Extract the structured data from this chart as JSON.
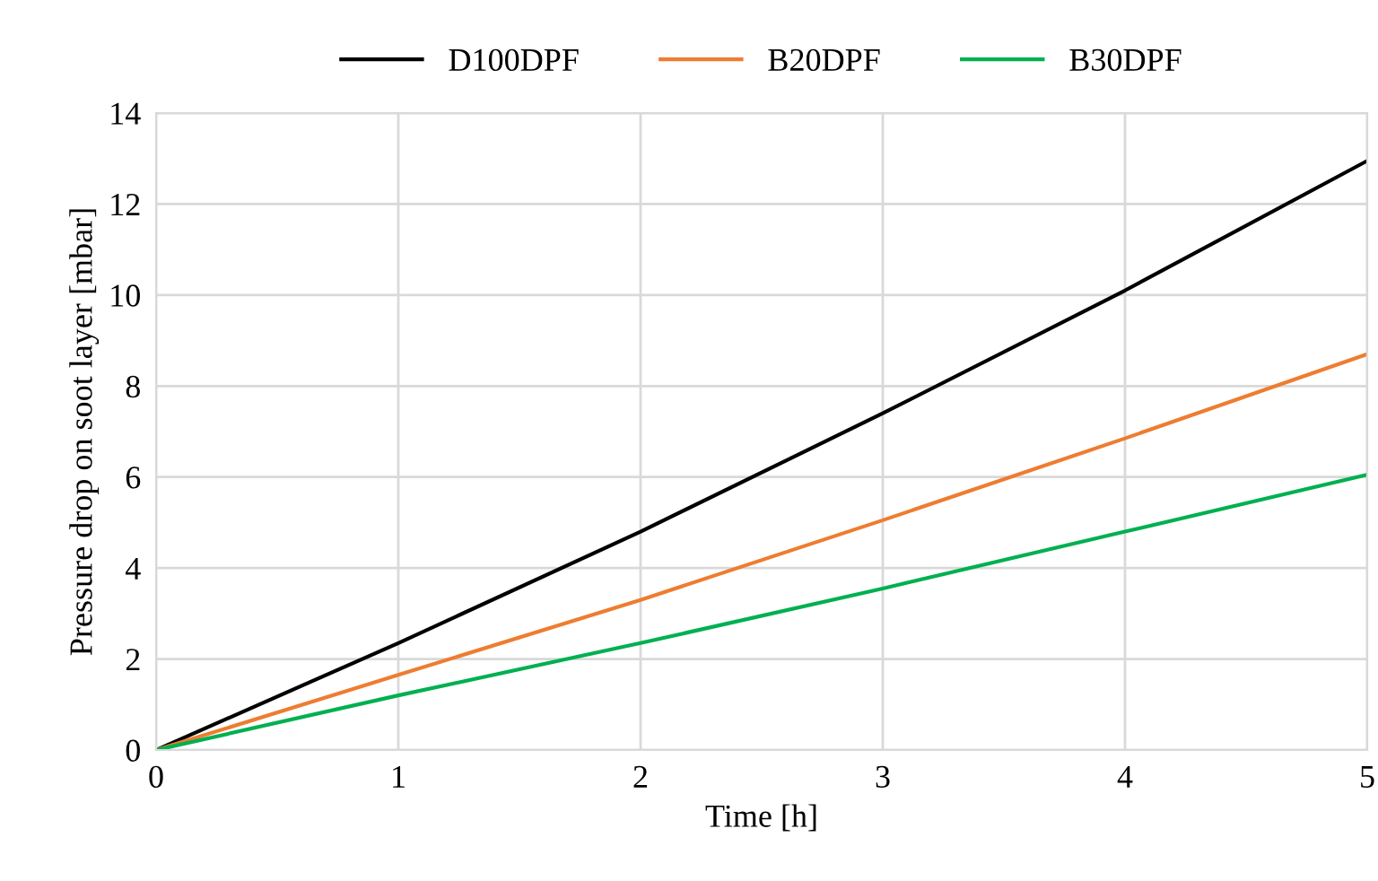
{
  "chart_data": {
    "type": "line",
    "xlabel": "Time [h]",
    "ylabel": "Pressure drop on soot layer [mbar]",
    "x": [
      0,
      1,
      2,
      3,
      4,
      5
    ],
    "series": [
      {
        "name": "D100DPF",
        "color": "#000000",
        "values": [
          0,
          2.35,
          4.8,
          7.4,
          10.1,
          12.95
        ]
      },
      {
        "name": "B20DPF",
        "color": "#ed7d31",
        "values": [
          0,
          1.65,
          3.3,
          5.05,
          6.85,
          8.7
        ]
      },
      {
        "name": "B30DPF",
        "color": "#00b050",
        "values": [
          0,
          1.2,
          2.35,
          3.55,
          4.8,
          6.05
        ]
      }
    ],
    "xlim": [
      0,
      5
    ],
    "xticks": [
      0,
      1,
      2,
      3,
      4,
      5
    ],
    "ylim": [
      0,
      14
    ],
    "yticks": [
      0,
      2,
      4,
      6,
      8,
      10,
      12,
      14
    ],
    "grid": true,
    "legend": "top",
    "marker": "none",
    "line_style": "solid"
  }
}
